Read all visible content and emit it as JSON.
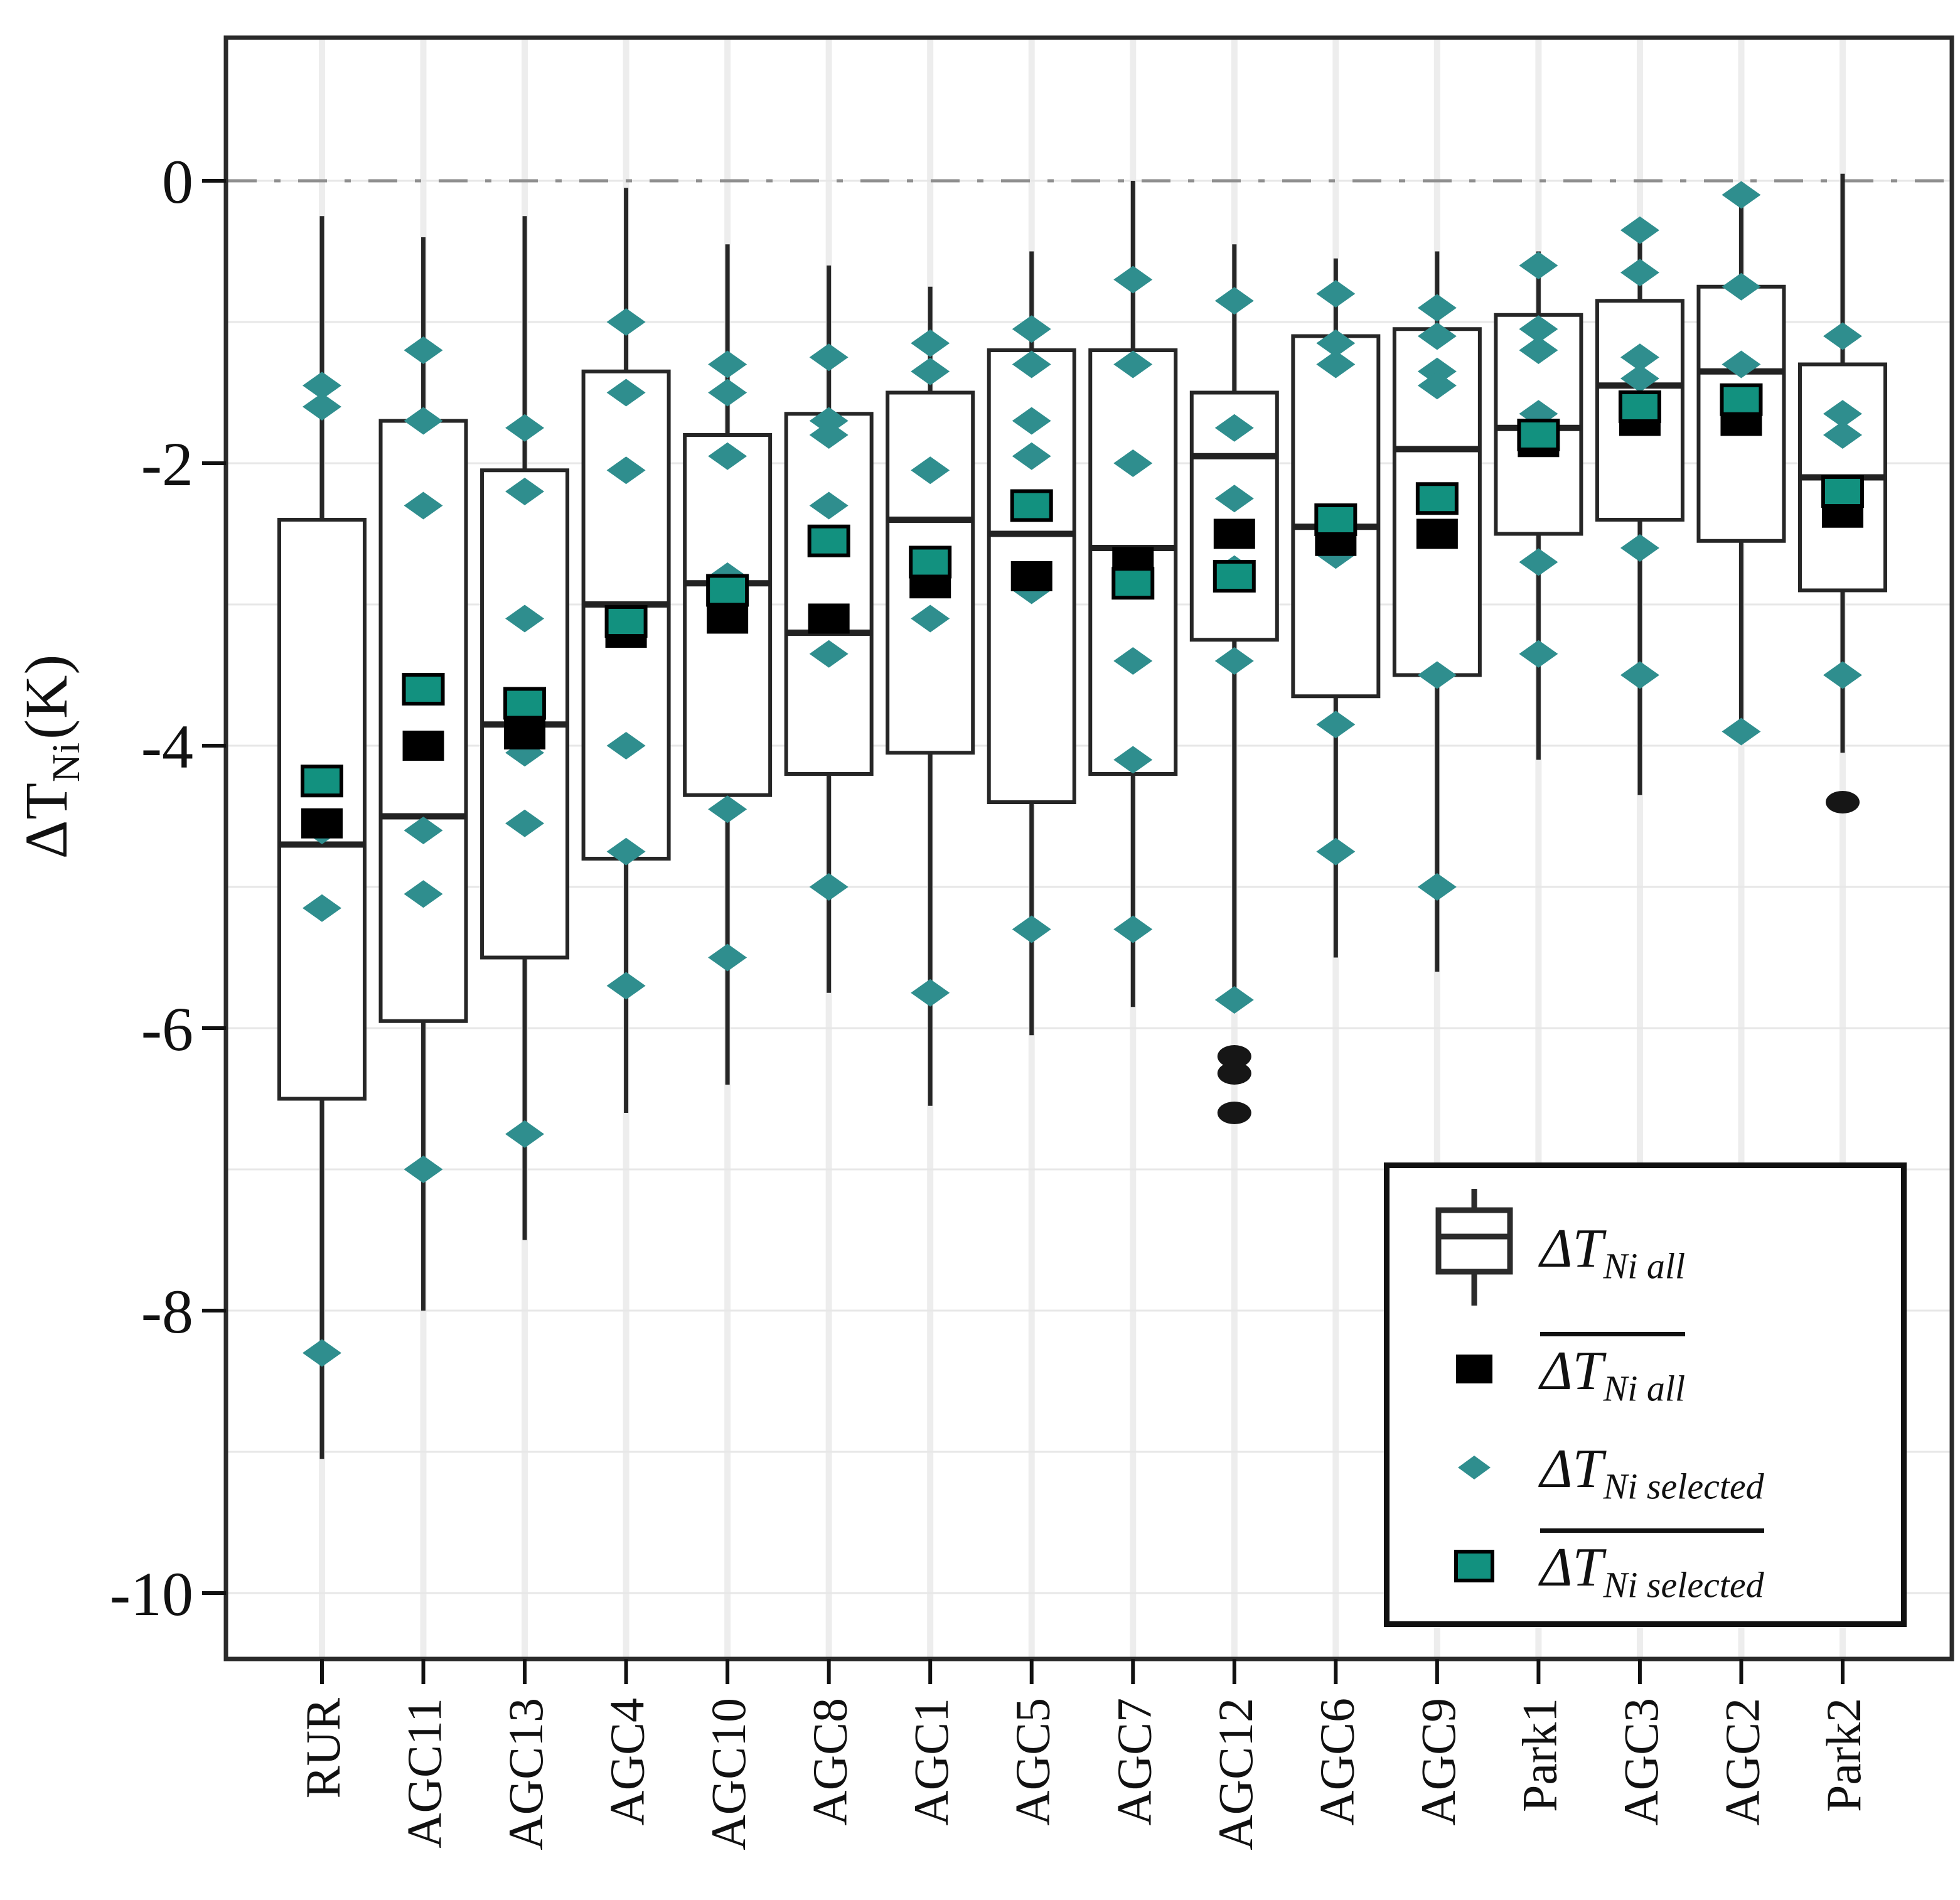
{
  "y_axis": {
    "label_base": "ΔT",
    "label_sub": "Ni",
    "label_unit": "(K)"
  },
  "legend": {
    "items": [
      {
        "symbol": "boxplot-glyph",
        "base": "ΔT",
        "sub": "Ni all",
        "overline": false
      },
      {
        "symbol": "black-square",
        "base": "ΔT",
        "sub": "Ni all",
        "overline": true
      },
      {
        "symbol": "teal-diamond",
        "base": "ΔT",
        "sub": "Ni selected",
        "overline": false
      },
      {
        "symbol": "teal-square",
        "base": "ΔT",
        "sub": "Ni selected",
        "overline": true
      }
    ]
  },
  "colors": {
    "diamond": "#2f8e8e",
    "mean_selected_fill": "#12917f",
    "mean_all_fill": "#000000",
    "box_stroke": "#262626",
    "grid": "#e7e7e7",
    "stripe": "#ededed",
    "zero_line": "#8f8f8f",
    "tick": "#111111",
    "outlier": "#161616"
  },
  "chart_data": {
    "type": "boxplot",
    "title": "",
    "xlabel": "",
    "ylabel": "ΔT_Ni (K)",
    "ylim": [
      -10.55,
      1.05
    ],
    "y_ticks": [
      0,
      -2,
      -4,
      -6,
      -8,
      -10
    ],
    "gridline_step": 1,
    "zero_reference_line": 0,
    "legend_position": "bottom-right",
    "categories": [
      "RUR",
      "AGC11",
      "AGC13",
      "AGC4",
      "AGC10",
      "AGC8",
      "AGC1",
      "AGC5",
      "AGC7",
      "AGC12",
      "AGC6",
      "AGC9",
      "Park1",
      "AGC3",
      "AGC2",
      "Park2"
    ],
    "boxes": [
      {
        "label": "RUR",
        "whisker_low": -9.05,
        "q1": -6.5,
        "median": -4.7,
        "q3": -2.4,
        "whisker_high": -0.25,
        "mean_all": -4.55,
        "mean_selected": -4.25,
        "selected": [
          -1.45,
          -1.6,
          -4.6,
          -5.15,
          -8.3
        ],
        "outliers": []
      },
      {
        "label": "AGC11",
        "whisker_low": -8.0,
        "q1": -5.95,
        "median": -4.5,
        "q3": -1.7,
        "whisker_high": -0.4,
        "mean_all": -4.0,
        "mean_selected": -3.6,
        "selected": [
          -1.2,
          -1.7,
          -2.3,
          -4.6,
          -5.05,
          -7.0
        ],
        "outliers": []
      },
      {
        "label": "AGC13",
        "whisker_low": -7.5,
        "q1": -5.5,
        "median": -3.85,
        "q3": -2.05,
        "whisker_high": -0.25,
        "mean_all": -3.92,
        "mean_selected": -3.7,
        "selected": [
          -1.75,
          -2.2,
          -3.1,
          -4.05,
          -4.55,
          -6.75
        ],
        "outliers": []
      },
      {
        "label": "AGC4",
        "whisker_low": -6.6,
        "q1": -4.8,
        "median": -3.0,
        "q3": -1.35,
        "whisker_high": -0.05,
        "mean_all": -3.2,
        "mean_selected": -3.12,
        "selected": [
          -1.0,
          -1.5,
          -2.05,
          -4.0,
          -4.75,
          -5.7
        ],
        "outliers": []
      },
      {
        "label": "AGC10",
        "whisker_low": -6.4,
        "q1": -4.35,
        "median": -2.85,
        "q3": -1.8,
        "whisker_high": -0.45,
        "mean_all": -3.1,
        "mean_selected": -2.9,
        "selected": [
          -1.3,
          -1.5,
          -1.95,
          -2.8,
          -4.45,
          -5.5
        ],
        "outliers": []
      },
      {
        "label": "AGC8",
        "whisker_low": -5.75,
        "q1": -4.2,
        "median": -3.2,
        "q3": -1.65,
        "whisker_high": -0.6,
        "mean_all": -3.1,
        "mean_selected": -2.55,
        "selected": [
          -1.25,
          -1.7,
          -1.8,
          -2.3,
          -3.35,
          -5.0
        ],
        "outliers": []
      },
      {
        "label": "AGC1",
        "whisker_low": -6.55,
        "q1": -4.05,
        "median": -2.4,
        "q3": -1.5,
        "whisker_high": -0.75,
        "mean_all": -2.85,
        "mean_selected": -2.7,
        "selected": [
          -1.15,
          -1.35,
          -2.05,
          -3.1,
          -5.75
        ],
        "outliers": []
      },
      {
        "label": "AGC5",
        "whisker_low": -6.05,
        "q1": -4.4,
        "median": -2.5,
        "q3": -1.2,
        "whisker_high": -0.5,
        "mean_all": -2.8,
        "mean_selected": -2.3,
        "selected": [
          -1.05,
          -1.3,
          -1.7,
          -1.95,
          -2.9,
          -5.3
        ],
        "outliers": []
      },
      {
        "label": "AGC7",
        "whisker_low": -5.85,
        "q1": -4.2,
        "median": -2.6,
        "q3": -1.2,
        "whisker_high": 0.0,
        "mean_all": -2.7,
        "mean_selected": -2.85,
        "selected": [
          -0.7,
          -1.3,
          -2.0,
          -3.4,
          -4.1,
          -5.3
        ],
        "outliers": []
      },
      {
        "label": "AGC12",
        "whisker_low": -5.8,
        "q1": -3.25,
        "median": -1.95,
        "q3": -1.5,
        "whisker_high": -0.45,
        "mean_all": -2.5,
        "mean_selected": -2.8,
        "selected": [
          -0.85,
          -1.75,
          -2.25,
          -2.75,
          -3.4,
          -5.8
        ],
        "outliers": [
          -6.2,
          -6.32,
          -6.6
        ]
      },
      {
        "label": "AGC6",
        "whisker_low": -5.5,
        "q1": -3.65,
        "median": -2.45,
        "q3": -1.1,
        "whisker_high": -0.55,
        "mean_all": -2.55,
        "mean_selected": -2.4,
        "selected": [
          -0.8,
          -1.15,
          -1.3,
          -2.65,
          -3.85,
          -4.75
        ],
        "outliers": []
      },
      {
        "label": "AGC9",
        "whisker_low": -5.6,
        "q1": -3.5,
        "median": -1.9,
        "q3": -1.05,
        "whisker_high": -0.5,
        "mean_all": -2.5,
        "mean_selected": -2.25,
        "selected": [
          -0.9,
          -1.1,
          -1.35,
          -1.45,
          -3.5,
          -5.0
        ],
        "outliers": []
      },
      {
        "label": "Park1",
        "whisker_low": -4.1,
        "q1": -2.5,
        "median": -1.75,
        "q3": -0.95,
        "whisker_high": -0.5,
        "mean_all": -1.85,
        "mean_selected": -1.8,
        "selected": [
          -0.6,
          -1.05,
          -1.2,
          -1.65,
          -2.7,
          -3.35
        ],
        "outliers": []
      },
      {
        "label": "AGC3",
        "whisker_low": -4.35,
        "q1": -2.4,
        "median": -1.45,
        "q3": -0.85,
        "whisker_high": -0.3,
        "mean_all": -1.7,
        "mean_selected": -1.6,
        "selected": [
          -0.35,
          -0.65,
          -1.25,
          -1.4,
          -2.6,
          -3.5
        ],
        "outliers": []
      },
      {
        "label": "AGC2",
        "whisker_low": -3.95,
        "q1": -2.55,
        "median": -1.35,
        "q3": -0.75,
        "whisker_high": -0.1,
        "mean_all": -1.7,
        "mean_selected": -1.55,
        "selected": [
          -0.1,
          -0.75,
          -1.3,
          -3.9
        ],
        "outliers": []
      },
      {
        "label": "Park2",
        "whisker_low": -4.05,
        "q1": -2.9,
        "median": -2.1,
        "q3": -1.3,
        "whisker_high": 0.05,
        "mean_all": -2.35,
        "mean_selected": -2.2,
        "selected": [
          -1.1,
          -1.65,
          -1.8,
          -3.5
        ],
        "outliers": [
          -4.4
        ]
      }
    ]
  }
}
